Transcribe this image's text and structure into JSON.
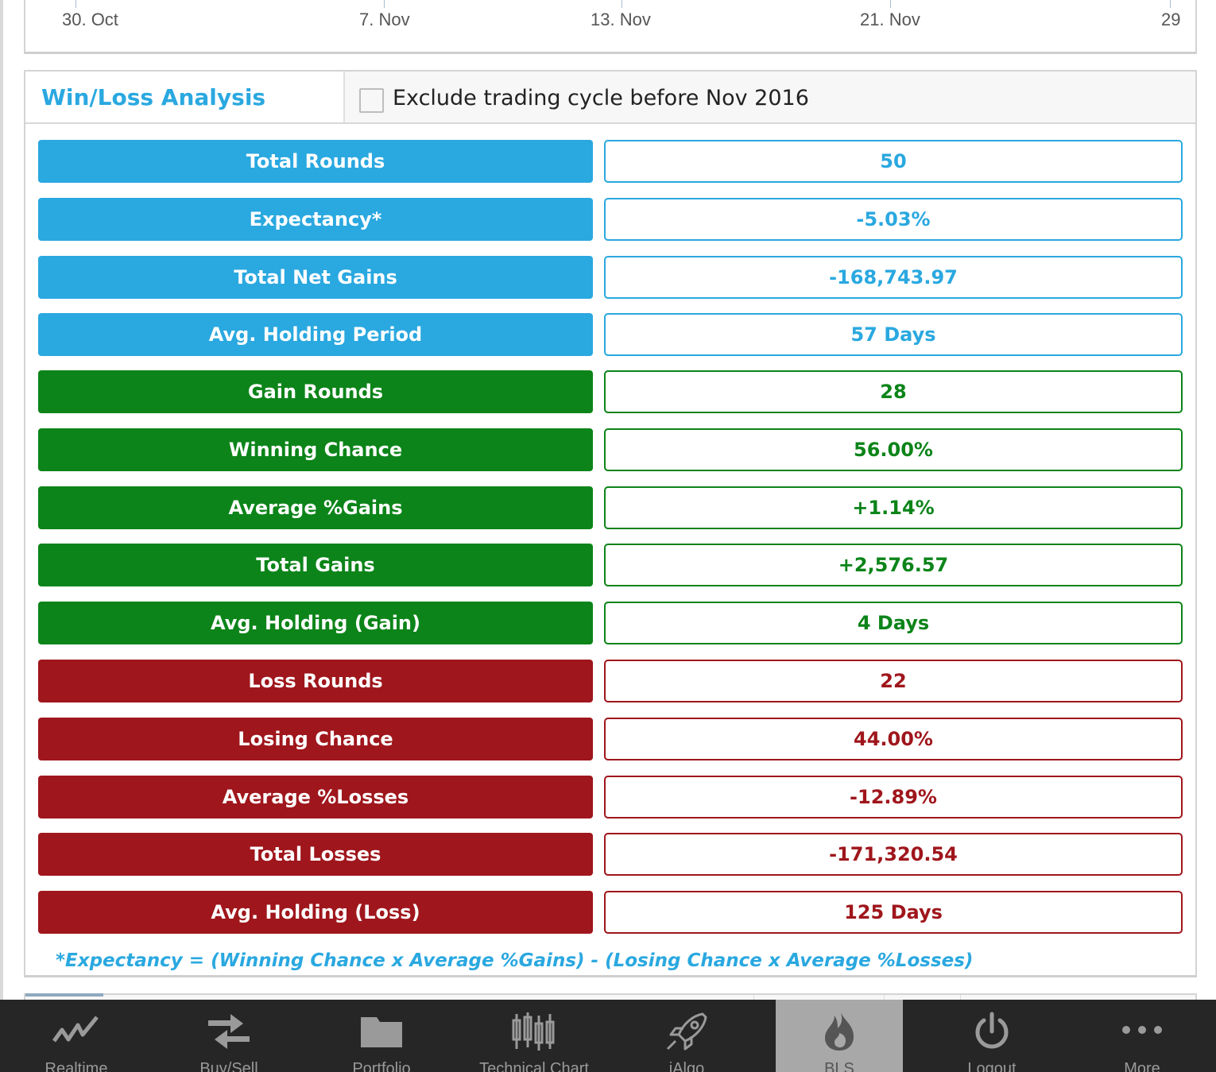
{
  "chart": {
    "x_ticks": [
      "30. Oct",
      "7. Nov",
      "13. Nov",
      "21. Nov",
      "29"
    ]
  },
  "win_loss": {
    "title": "Win/Loss Analysis",
    "exclude_label": "Exclude trading cycle before Nov 2016",
    "exclude_checked": false,
    "rows": [
      {
        "label": "Total Rounds",
        "value": "50",
        "color": "#2aa8e0"
      },
      {
        "label": "Expectancy*",
        "value": "-5.03%",
        "color": "#2aa8e0"
      },
      {
        "label": "Total Net Gains",
        "value": "-168,743.97",
        "color": "#2aa8e0"
      },
      {
        "label": "Avg. Holding Period",
        "value": "57 Days",
        "color": "#2aa8e0"
      },
      {
        "label": "Gain Rounds",
        "value": "28",
        "color": "#0c8419"
      },
      {
        "label": "Winning Chance",
        "value": "56.00%",
        "color": "#0c8419"
      },
      {
        "label": "Average %Gains",
        "value": "+1.14%",
        "color": "#0c8419"
      },
      {
        "label": "Total Gains",
        "value": "+2,576.57",
        "color": "#0c8419"
      },
      {
        "label": "Avg. Holding (Gain)",
        "value": "4 Days",
        "color": "#0c8419"
      },
      {
        "label": "Loss Rounds",
        "value": "22",
        "color": "#9f161c"
      },
      {
        "label": "Losing Chance",
        "value": "44.00%",
        "color": "#9f161c"
      },
      {
        "label": "Average %Losses",
        "value": "-12.89%",
        "color": "#9f161c"
      },
      {
        "label": "Total Losses",
        "value": "-171,320.54",
        "color": "#9f161c"
      },
      {
        "label": "Avg. Holding (Loss)",
        "value": "125 Days",
        "color": "#9f161c"
      }
    ],
    "formula": "*Expectancy = (Winning Chance x Average %Gains) - (Losing Chance x Average %Losses)"
  },
  "tabbar": {
    "active": "BLS",
    "tabs": [
      {
        "label": "Realtime",
        "icon": "realtime-line-icon"
      },
      {
        "label": "Buy/Sell",
        "icon": "buy-sell-arrows-icon"
      },
      {
        "label": "Portfolio",
        "icon": "folder-icon"
      },
      {
        "label": "Technical Chart",
        "icon": "candlestick-icon"
      },
      {
        "label": "iAlgo",
        "icon": "rocket-icon"
      },
      {
        "label": "BLS",
        "icon": "flame-icon"
      },
      {
        "label": "Logout",
        "icon": "power-icon"
      },
      {
        "label": "More",
        "icon": "more-dots-icon"
      }
    ]
  }
}
